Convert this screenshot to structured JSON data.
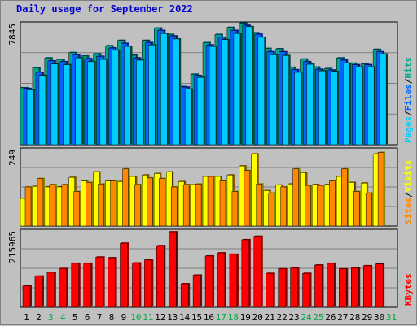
{
  "title": "Daily usage for September 2022",
  "colors": {
    "pages": "#00ccff",
    "files": "#0066ff",
    "hits": "#00aa88",
    "sites": "#ff8800",
    "visits": "#ffff00",
    "kbytes": "#ff0000",
    "weekday_label": "#000000",
    "weekend_label": "#00aa44",
    "title": "#0000cc"
  },
  "chart_data": [
    {
      "type": "bar",
      "panel": "top",
      "y_max_label": "7845",
      "ylim": [
        0,
        7845
      ],
      "series": [
        {
          "name": "Hits",
          "values": [
            3740,
            5050,
            5700,
            5600,
            6050,
            5820,
            5970,
            6500,
            6850,
            5870,
            6850,
            7660,
            7240,
            3820,
            4630,
            6700,
            7240,
            7700,
            7980,
            7350,
            6320,
            6300,
            5080,
            5620,
            5100,
            5000,
            5700,
            5350,
            5310,
            6260
          ]
        },
        {
          "name": "Files",
          "values": [
            3690,
            4750,
            5500,
            5450,
            5900,
            5650,
            5800,
            6350,
            6650,
            5700,
            6700,
            7500,
            7140,
            3780,
            4540,
            6550,
            7050,
            7500,
            7840,
            7250,
            6100,
            6100,
            4920,
            5450,
            4950,
            4900,
            5550,
            5250,
            5250,
            6100
          ]
        },
        {
          "name": "Pages",
          "values": [
            3600,
            4550,
            5300,
            5250,
            5700,
            5450,
            5600,
            6200,
            6450,
            5550,
            6550,
            7300,
            6940,
            3650,
            4420,
            6450,
            6900,
            7300,
            7750,
            7050,
            5900,
            5850,
            4750,
            5280,
            4850,
            4800,
            5350,
            5100,
            5100,
            5950
          ]
        }
      ],
      "legend": [
        "Pages",
        "Files",
        "Hits"
      ]
    },
    {
      "type": "bar",
      "panel": "middle",
      "y_max_label": "249",
      "ylim": [
        0,
        249
      ],
      "series": [
        {
          "name": "Visits",
          "values": [
            92,
            132,
            130,
            130,
            162,
            150,
            180,
            150,
            148,
            165,
            170,
            175,
            180,
            148,
            137,
            165,
            165,
            170,
            200,
            240,
            118,
            136,
            140,
            178,
            138,
            138,
            165,
            145,
            143,
            240
          ]
        },
        {
          "name": "Sites",
          "values": [
            130,
            158,
            138,
            138,
            115,
            145,
            140,
            150,
            190,
            138,
            160,
            158,
            130,
            138,
            140,
            165,
            150,
            115,
            185,
            140,
            110,
            130,
            190,
            135,
            135,
            150,
            190,
            115,
            110,
            245
          ]
        }
      ],
      "legend": [
        "Sites",
        "Visits"
      ]
    },
    {
      "type": "bar",
      "panel": "bottom",
      "y_max_label": "215965",
      "ylim": [
        0,
        215965
      ],
      "series": [
        {
          "name": "KBytes",
          "values": [
            62000,
            90000,
            101000,
            112000,
            127000,
            127000,
            145000,
            143000,
            185000,
            128000,
            137000,
            178000,
            218000,
            68000,
            93000,
            148000,
            157000,
            153000,
            195000,
            205000,
            98000,
            111000,
            113000,
            98000,
            122000,
            127000,
            111000,
            114000,
            120000,
            125000
          ]
        }
      ],
      "legend": [
        "KBytes"
      ]
    }
  ],
  "x_labels": [
    "1",
    "2",
    "3",
    "4",
    "5",
    "6",
    "7",
    "8",
    "9",
    "10",
    "11",
    "12",
    "13",
    "14",
    "15",
    "16",
    "17",
    "18",
    "19",
    "20",
    "21",
    "22",
    "23",
    "24",
    "25",
    "26",
    "27",
    "28",
    "29",
    "30",
    "31"
  ],
  "weekend_days": [
    3,
    4,
    10,
    11,
    17,
    18,
    24,
    25,
    31
  ]
}
